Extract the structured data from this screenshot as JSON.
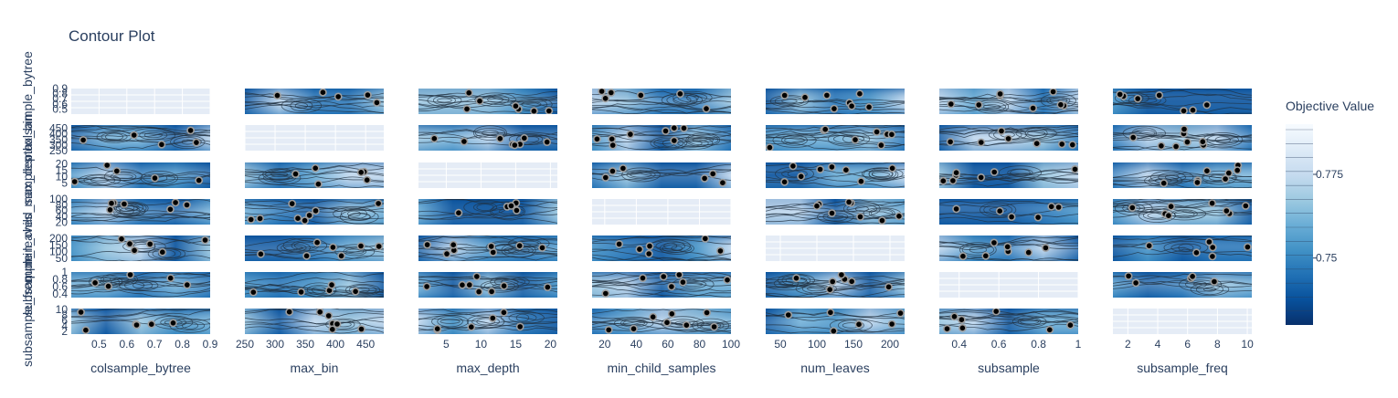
{
  "chart_data": {
    "type": "contour",
    "title": "Contour Plot",
    "params": [
      "colsample_bytree",
      "max_bin",
      "max_depth",
      "min_child_samples",
      "num_leaves",
      "subsample",
      "subsample_freq"
    ],
    "x_ticks": {
      "colsample_bytree": [
        "0.5",
        "0.6",
        "0.7",
        "0.8",
        "0.9"
      ],
      "max_bin": [
        "250",
        "300",
        "350",
        "400",
        "450"
      ],
      "max_depth": [
        "5",
        "10",
        "15",
        "20"
      ],
      "min_child_samples": [
        "20",
        "40",
        "60",
        "80",
        "100"
      ],
      "num_leaves": [
        "50",
        "100",
        "150",
        "200"
      ],
      "subsample": [
        "0.4",
        "0.6",
        "0.8",
        "1"
      ],
      "subsample_freq": [
        "2",
        "4",
        "6",
        "8",
        "10"
      ]
    },
    "x_ranges": {
      "colsample_bytree": [
        0.4,
        0.9
      ],
      "max_bin": [
        250,
        480
      ],
      "max_depth": [
        1,
        21
      ],
      "min_child_samples": [
        12,
        100
      ],
      "num_leaves": [
        30,
        220
      ],
      "subsample": [
        0.3,
        1.0
      ],
      "subsample_freq": [
        1,
        10.3
      ]
    },
    "y_ticks": {
      "colsample_bytree": [
        "0.5",
        "0.6",
        "0.7",
        "0.8",
        "0.9"
      ],
      "max_bin": [
        "250",
        "300",
        "350",
        "400",
        "450"
      ],
      "max_depth": [
        "5",
        "10",
        "15",
        "20"
      ],
      "min_child_samples": [
        "20",
        "40",
        "60",
        "80",
        "100"
      ],
      "num_leaves": [
        "50",
        "100",
        "150",
        "200"
      ],
      "subsample": [
        "0.4",
        "0.6",
        "0.8",
        "1"
      ],
      "subsample_freq": [
        "2",
        "4",
        "6",
        "8",
        "10"
      ]
    },
    "colorbar": {
      "title": "Objective Value",
      "ticks": [
        "0.775",
        "0.75"
      ],
      "range": [
        0.73,
        0.79
      ],
      "colorscale": [
        "#08306b",
        "#08519c",
        "#2171b5",
        "#4292c6",
        "#6baed6",
        "#9ecae1",
        "#c6dbef",
        "#deebf7",
        "#f7fbff"
      ]
    }
  }
}
